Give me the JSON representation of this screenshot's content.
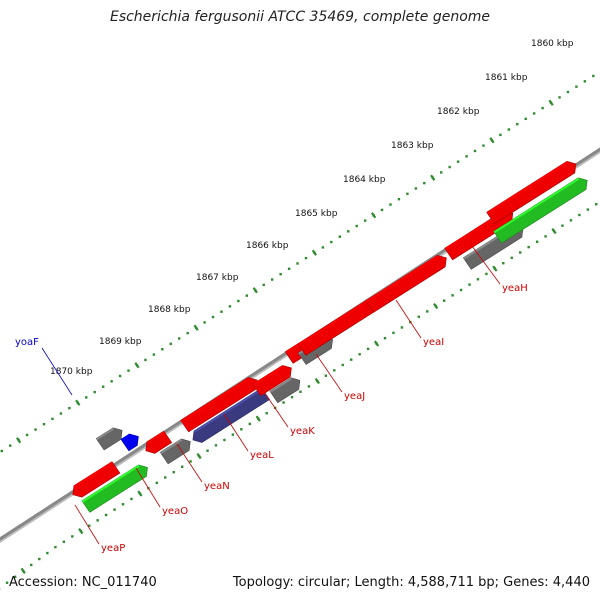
{
  "title": "Escherichia fergusonii ATCC 35469, complete genome",
  "footer": {
    "accession": "Accession: NC_011740",
    "summary": "Topology: circular; Length: 4,588,711 bp; Genes: 4,440"
  },
  "scale_labels": [
    "1860 kbp",
    "1861 kbp",
    "1862 kbp",
    "1863 kbp",
    "1864 kbp",
    "1865 kbp",
    "1866 kbp",
    "1867 kbp",
    "1868 kbp",
    "1869 kbp",
    "1870 kbp"
  ],
  "gene_labels": [
    {
      "text": "yeaH",
      "color": "#cc0000"
    },
    {
      "text": "yeaI",
      "color": "#cc0000"
    },
    {
      "text": "yeaJ",
      "color": "#cc0000"
    },
    {
      "text": "yeaK",
      "color": "#cc0000"
    },
    {
      "text": "yeaL",
      "color": "#cc0000"
    },
    {
      "text": "yeaN",
      "color": "#cc0000"
    },
    {
      "text": "yeaO",
      "color": "#cc0000"
    },
    {
      "text": "yeaP",
      "color": "#cc0000"
    },
    {
      "text": "yoaF",
      "color": "#0000cc"
    }
  ],
  "colors": {
    "forward_cds": "#ee0000",
    "reverse_cds": "#22bb22",
    "gray_feature": "#666666",
    "navy_feature": "#3a3a80",
    "blue_feature": "#0000ee",
    "olive_feature": "#6b8e23",
    "backbone": "#888888",
    "tick": "#2e8b2e"
  }
}
